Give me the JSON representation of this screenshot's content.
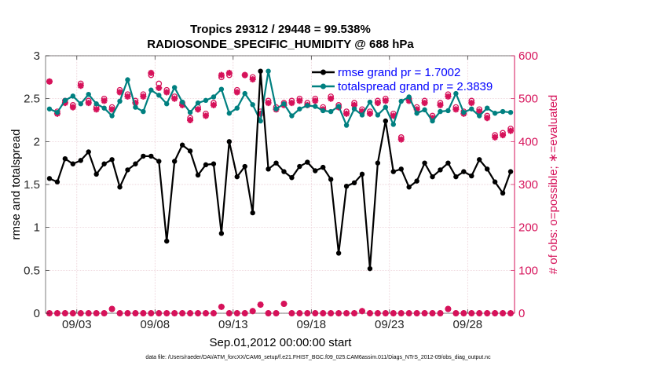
{
  "chart_data": {
    "type": "line",
    "title": "Tropics 29312 / 29448 = 99.538%",
    "subtitle": "RADIOSONDE_SPECIFIC_HUMIDITY @ 688 hPa",
    "xlabel": "Sep.01,2012 00:00:00 start",
    "ylabel_left": "rmse and totalspread",
    "ylabel_right": "# of obs: o=possible; ∗=evaluated",
    "xlim": [
      1,
      31
    ],
    "ylim_left": [
      0,
      3
    ],
    "ylim_right": [
      0,
      600
    ],
    "x_ticks": [
      3,
      8,
      13,
      18,
      23,
      28
    ],
    "x_tick_labels": [
      "09/03",
      "09/08",
      "09/13",
      "09/18",
      "09/23",
      "09/28"
    ],
    "y_ticks_left": [
      0,
      0.5,
      1,
      1.5,
      2,
      2.5,
      3
    ],
    "y_tick_labels_left": [
      "0",
      "0.5",
      "1",
      "1.5",
      "2",
      "2.5",
      "3"
    ],
    "y_ticks_right": [
      0,
      100,
      200,
      300,
      400,
      500,
      600
    ],
    "y_tick_labels_right": [
      "0",
      "100",
      "200",
      "300",
      "400",
      "500",
      "600"
    ],
    "grid": true,
    "legend": {
      "position": "top-right",
      "entries": [
        "rmse grand pr = 1.7002",
        "totalspread grand pr = 2.3839"
      ]
    },
    "colors": {
      "rmse": "#000000",
      "spread": "#008080",
      "obs": "#d6125a",
      "grid": "#e8c6cf",
      "axis_left": "#262626",
      "axis_right": "#d6125a",
      "legend_text": "#0000ff"
    },
    "series": [
      {
        "name": "rmse",
        "axis": "left",
        "x": [
          1.25,
          1.75,
          2.25,
          2.75,
          3.25,
          3.75,
          4.25,
          4.75,
          5.25,
          5.75,
          6.25,
          6.75,
          7.25,
          7.75,
          8.25,
          8.75,
          9.25,
          9.75,
          10.25,
          10.75,
          11.25,
          11.75,
          12.25,
          12.75,
          13.25,
          13.75,
          14.25,
          14.75,
          15.25,
          15.75,
          16.25,
          16.75,
          17.25,
          17.75,
          18.25,
          18.75,
          19.25,
          19.75,
          20.25,
          20.75,
          21.25,
          21.75,
          22.25,
          22.75,
          23.25,
          23.75,
          24.25,
          24.75,
          25.25,
          25.75,
          26.25,
          26.75,
          27.25,
          27.75,
          28.25,
          28.75,
          29.25,
          29.75,
          30.25,
          30.75
        ],
        "values": [
          1.57,
          1.53,
          1.8,
          1.74,
          1.78,
          1.88,
          1.62,
          1.74,
          1.79,
          1.47,
          1.67,
          1.74,
          1.83,
          1.83,
          1.77,
          0.84,
          1.77,
          1.96,
          1.89,
          1.61,
          1.73,
          1.74,
          0.93,
          2.0,
          1.59,
          1.71,
          1.17,
          2.82,
          1.68,
          1.75,
          1.65,
          1.58,
          1.71,
          1.76,
          1.66,
          1.7,
          1.56,
          0.7,
          1.48,
          1.52,
          1.62,
          0.52,
          1.75,
          2.24,
          1.65,
          1.68,
          1.47,
          1.54,
          1.75,
          1.59,
          1.67,
          1.75,
          1.59,
          1.65,
          1.6,
          1.79,
          1.68,
          1.53,
          1.4,
          1.65
        ]
      },
      {
        "name": "totalspread",
        "axis": "left",
        "x": [
          1.25,
          1.75,
          2.25,
          2.75,
          3.25,
          3.75,
          4.25,
          4.75,
          5.25,
          5.75,
          6.25,
          6.75,
          7.25,
          7.75,
          8.25,
          8.75,
          9.25,
          9.75,
          10.25,
          10.75,
          11.25,
          11.75,
          12.25,
          12.75,
          13.25,
          13.75,
          14.25,
          14.75,
          15.25,
          15.75,
          16.25,
          16.75,
          17.25,
          17.75,
          18.25,
          18.75,
          19.25,
          19.75,
          20.25,
          20.75,
          21.25,
          21.75,
          22.25,
          22.75,
          23.25,
          23.75,
          24.25,
          24.75,
          25.25,
          25.75,
          26.25,
          26.75,
          27.25,
          27.75,
          28.25,
          28.75,
          29.25,
          29.75,
          30.25,
          30.75
        ],
        "values": [
          2.38,
          2.34,
          2.48,
          2.53,
          2.44,
          2.55,
          2.44,
          2.39,
          2.3,
          2.47,
          2.72,
          2.4,
          2.35,
          2.6,
          2.54,
          2.44,
          2.63,
          2.46,
          2.34,
          2.45,
          2.48,
          2.52,
          2.61,
          2.33,
          2.39,
          2.56,
          2.43,
          2.24,
          2.82,
          2.38,
          2.44,
          2.3,
          2.38,
          2.42,
          2.41,
          2.36,
          2.35,
          2.41,
          2.19,
          2.38,
          2.31,
          2.46,
          2.31,
          2.4,
          2.2,
          2.47,
          2.52,
          2.33,
          2.37,
          2.24,
          2.35,
          2.36,
          2.56,
          2.34,
          2.38,
          2.3,
          2.39,
          2.33,
          2.35,
          2.34
        ]
      },
      {
        "name": "obs_possible",
        "axis": "right",
        "x": [
          1.25,
          1.75,
          2.25,
          2.75,
          3.25,
          3.75,
          4.25,
          4.75,
          5.25,
          5.75,
          6.25,
          6.75,
          7.25,
          7.75,
          8.25,
          8.75,
          9.25,
          9.75,
          10.25,
          10.75,
          11.25,
          11.75,
          12.25,
          12.75,
          13.25,
          13.75,
          14.25,
          14.75,
          15.25,
          15.75,
          16.25,
          16.75,
          17.25,
          17.75,
          18.25,
          18.75,
          19.25,
          19.75,
          20.25,
          20.75,
          21.25,
          21.75,
          22.25,
          22.75,
          23.25,
          23.75,
          24.25,
          24.75,
          25.25,
          25.75,
          26.25,
          26.75,
          27.25,
          27.75,
          28.25,
          28.75,
          29.25,
          29.75,
          30.25,
          30.75
        ],
        "values": [
          540,
          470,
          495,
          485,
          535,
          495,
          480,
          500,
          480,
          520,
          510,
          495,
          510,
          555,
          535,
          520,
          505,
          490,
          455,
          480,
          465,
          490,
          550,
          555,
          520,
          555,
          550,
          470,
          495,
          480,
          490,
          495,
          500,
          490,
          500,
          480,
          505,
          485,
          470,
          490,
          475,
          470,
          495,
          500,
          465,
          410,
          500,
          480,
          495,
          460,
          490,
          510,
          480,
          470,
          495,
          475,
          460,
          415,
          420,
          430
        ]
      },
      {
        "name": "obs_evaluated",
        "axis": "right",
        "x": [
          1.25,
          1.75,
          2.25,
          2.75,
          3.25,
          3.75,
          4.25,
          4.75,
          5.25,
          5.75,
          6.25,
          6.75,
          7.25,
          7.75,
          8.25,
          8.75,
          9.25,
          9.75,
          10.25,
          10.75,
          11.25,
          11.75,
          12.25,
          12.75,
          13.25,
          13.75,
          14.25,
          14.75,
          15.25,
          15.75,
          16.25,
          16.75,
          17.25,
          17.75,
          18.25,
          18.75,
          19.25,
          19.75,
          20.25,
          20.75,
          21.25,
          21.75,
          22.25,
          22.75,
          23.25,
          23.75,
          24.25,
          24.75,
          25.25,
          25.75,
          26.25,
          26.75,
          27.25,
          27.75,
          28.25,
          28.75,
          29.25,
          29.75,
          30.25,
          30.75
        ],
        "values": [
          540,
          465,
          490,
          480,
          530,
          490,
          475,
          495,
          475,
          515,
          505,
          490,
          505,
          560,
          525,
          515,
          500,
          485,
          450,
          475,
          460,
          485,
          555,
          560,
          515,
          555,
          545,
          465,
          490,
          475,
          485,
          490,
          495,
          485,
          495,
          475,
          500,
          480,
          465,
          485,
          470,
          465,
          490,
          495,
          460,
          405,
          495,
          475,
          490,
          455,
          485,
          505,
          475,
          465,
          490,
          470,
          455,
          410,
          415,
          425
        ]
      },
      {
        "name": "obs_low_possible",
        "axis": "right",
        "x": [
          1.25,
          1.75,
          2.25,
          2.75,
          3.25,
          3.75,
          4.25,
          4.75,
          5.25,
          5.75,
          6.25,
          6.75,
          7.25,
          7.75,
          8.25,
          8.75,
          9.25,
          9.75,
          10.25,
          10.75,
          11.25,
          11.75,
          12.25,
          12.75,
          13.25,
          13.75,
          14.25,
          14.75,
          15.25,
          15.75,
          16.25,
          16.75,
          17.25,
          17.75,
          18.25,
          18.75,
          19.25,
          19.75,
          20.25,
          20.75,
          21.25,
          21.75,
          22.25,
          22.75,
          23.25,
          23.75,
          24.25,
          24.75,
          25.25,
          25.75,
          26.25,
          26.75,
          27.25,
          27.75,
          28.25,
          28.75,
          29.25,
          29.75,
          30.25,
          30.75
        ],
        "values": [
          0,
          0,
          0,
          0,
          0,
          0,
          0,
          0,
          10,
          0,
          0,
          0,
          0,
          0,
          0,
          0,
          0,
          0,
          0,
          0,
          0,
          0,
          15,
          0,
          0,
          0,
          5,
          20,
          0,
          0,
          22,
          0,
          0,
          0,
          0,
          0,
          0,
          0,
          0,
          0,
          5,
          0,
          0,
          0,
          0,
          0,
          0,
          0,
          0,
          0,
          0,
          10,
          0,
          0,
          0,
          0,
          0,
          0,
          0,
          0
        ]
      },
      {
        "name": "obs_low_evaluated",
        "axis": "right",
        "x": [
          1.25,
          1.75,
          2.25,
          2.75,
          3.25,
          3.75,
          4.25,
          4.75,
          5.25,
          5.75,
          6.25,
          6.75,
          7.25,
          7.75,
          8.25,
          8.75,
          9.25,
          9.75,
          10.25,
          10.75,
          11.25,
          11.75,
          12.25,
          12.75,
          13.25,
          13.75,
          14.25,
          14.75,
          15.25,
          15.75,
          16.25,
          16.75,
          17.25,
          17.75,
          18.25,
          18.75,
          19.25,
          19.75,
          20.25,
          20.75,
          21.25,
          21.75,
          22.25,
          22.75,
          23.25,
          23.75,
          24.25,
          24.75,
          25.25,
          25.75,
          26.25,
          26.75,
          27.25,
          27.75,
          28.25,
          28.75,
          29.25,
          29.75,
          30.25,
          30.75
        ],
        "values": [
          0,
          0,
          0,
          0,
          0,
          0,
          0,
          0,
          10,
          0,
          0,
          0,
          0,
          0,
          0,
          0,
          0,
          0,
          0,
          0,
          0,
          0,
          15,
          0,
          0,
          0,
          5,
          20,
          0,
          0,
          22,
          0,
          0,
          0,
          0,
          0,
          0,
          0,
          0,
          0,
          5,
          0,
          0,
          0,
          0,
          0,
          0,
          0,
          0,
          0,
          0,
          10,
          0,
          0,
          0,
          0,
          0,
          0,
          0,
          0
        ]
      }
    ]
  },
  "footer": {
    "data_file": "data file: /Users/raeder/DAI/ATM_forcXX/CAM6_setup/f.e21.FHIST_BGC.f09_025.CAM6assim.011/Diags_NTrS_2012-09/obs_diag_output.nc"
  }
}
